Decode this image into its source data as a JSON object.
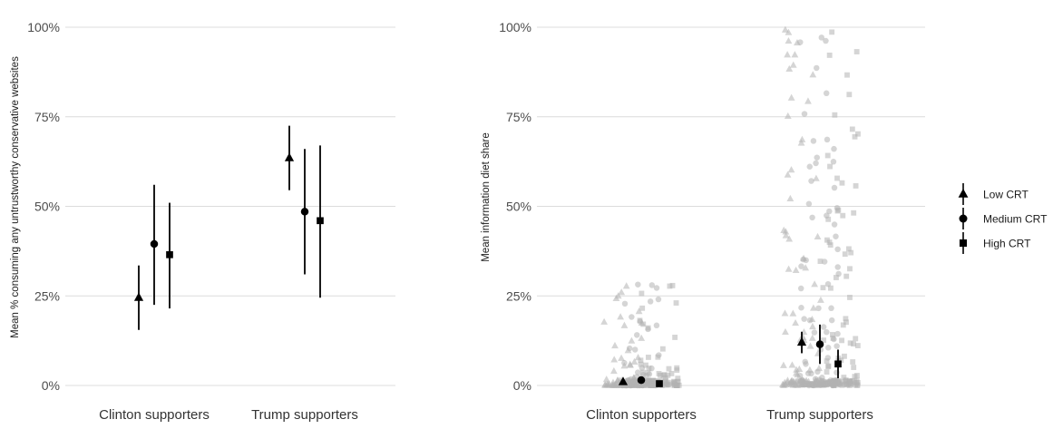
{
  "chart_data": [
    {
      "type": "scatter",
      "title": "",
      "xlabel": "",
      "ylabel": "Mean % consuming any untrustworthy conservative websites",
      "categories": [
        "Clinton supporters",
        "Trump supporters"
      ],
      "y_ticks": [
        "0%",
        "25%",
        "50%",
        "75%",
        "100%"
      ],
      "ylim": [
        0,
        100
      ],
      "grid": true,
      "series": [
        {
          "name": "Low CRT",
          "marker": "triangle",
          "values": [
            24.5,
            63.5
          ],
          "ci_low": [
            15.5,
            54.5
          ],
          "ci_high": [
            33.5,
            72.5
          ]
        },
        {
          "name": "Medium CRT",
          "marker": "circle",
          "values": [
            39.5,
            48.5
          ],
          "ci_low": [
            22.5,
            31
          ],
          "ci_high": [
            56,
            66
          ]
        },
        {
          "name": "High CRT",
          "marker": "square",
          "values": [
            36.5,
            46
          ],
          "ci_low": [
            21.5,
            24.5
          ],
          "ci_high": [
            51,
            67
          ]
        }
      ]
    },
    {
      "type": "scatter",
      "title": "",
      "xlabel": "",
      "ylabel": "Mean information diet share",
      "categories": [
        "Clinton supporters",
        "Trump supporters"
      ],
      "y_ticks": [
        "0%",
        "25%",
        "50%",
        "75%",
        "100%"
      ],
      "ylim": [
        0,
        100
      ],
      "grid": true,
      "raw_points": "light grey jittered individual observations behind the means",
      "series": [
        {
          "name": "Low CRT",
          "marker": "triangle",
          "values": [
            1,
            12
          ],
          "ci_low": [
            0.5,
            9
          ],
          "ci_high": [
            1.5,
            15
          ]
        },
        {
          "name": "Medium CRT",
          "marker": "circle",
          "values": [
            1.5,
            11.5
          ],
          "ci_low": [
            0.5,
            6
          ],
          "ci_high": [
            2.5,
            17
          ]
        },
        {
          "name": "High CRT",
          "marker": "square",
          "values": [
            0.5,
            6
          ],
          "ci_low": [
            0,
            2
          ],
          "ci_high": [
            1,
            10
          ]
        }
      ]
    }
  ],
  "legend": {
    "placement": "right",
    "items": [
      {
        "label": "Low CRT",
        "marker": "triangle"
      },
      {
        "label": "Medium CRT",
        "marker": "circle"
      },
      {
        "label": "High CRT",
        "marker": "square"
      }
    ]
  },
  "colors": {
    "marker": "#000000",
    "raw": "#b3b3b3",
    "grid": "#dcdcdc"
  }
}
